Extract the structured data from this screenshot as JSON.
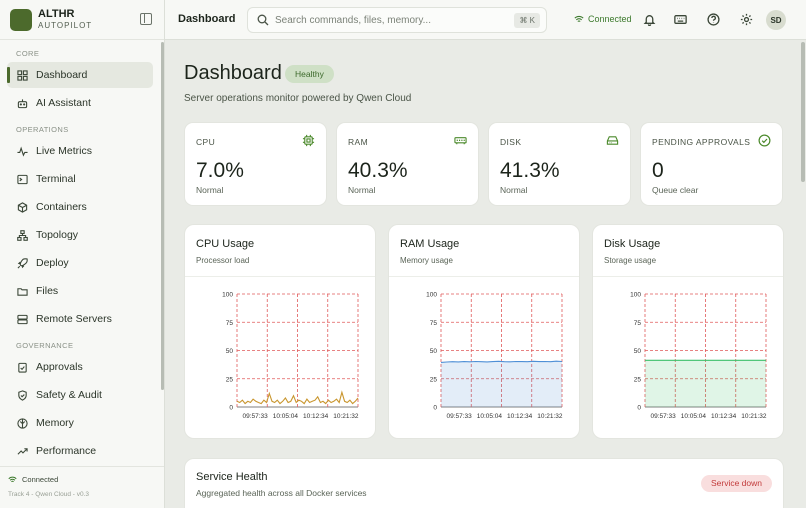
{
  "brand": {
    "title": "ALTHR",
    "subtitle": "AUTOPILOT"
  },
  "sidebar": {
    "sections": [
      {
        "label": "CORE",
        "items": [
          {
            "label": "Dashboard",
            "icon": "grid-icon",
            "active": true
          },
          {
            "label": "AI Assistant",
            "icon": "bot-icon"
          }
        ]
      },
      {
        "label": "OPERATIONS",
        "items": [
          {
            "label": "Live Metrics",
            "icon": "activity-icon"
          },
          {
            "label": "Terminal",
            "icon": "terminal-icon"
          },
          {
            "label": "Containers",
            "icon": "box-icon"
          },
          {
            "label": "Topology",
            "icon": "network-icon"
          },
          {
            "label": "Deploy",
            "icon": "rocket-icon"
          },
          {
            "label": "Files",
            "icon": "folder-icon"
          },
          {
            "label": "Remote Servers",
            "icon": "server-icon"
          }
        ]
      },
      {
        "label": "GOVERNANCE",
        "items": [
          {
            "label": "Approvals",
            "icon": "clipboard-check-icon"
          },
          {
            "label": "Safety & Audit",
            "icon": "shield-icon"
          },
          {
            "label": "Memory",
            "icon": "brain-icon"
          },
          {
            "label": "Performance",
            "icon": "trend-icon"
          }
        ]
      }
    ],
    "footer": {
      "status": "Connected",
      "version": "Track 4 - Qwen Cloud - v0.3"
    }
  },
  "topbar": {
    "title": "Dashboard",
    "search_placeholder": "Search commands, files, memory...",
    "search_shortcut": "⌘ K",
    "connection": "Connected",
    "avatar": "SD"
  },
  "colors": {
    "accent": "#4c6a2c",
    "cpu_line": "#c9962e",
    "ram_line": "#4f8fd6",
    "disk_line": "#3dbf6a",
    "grid": "#e05a5a",
    "danger": "#c23b3b"
  },
  "main": {
    "title": "Dashboard",
    "status_badge": "Healthy",
    "subtitle": "Server operations monitor powered by Qwen Cloud",
    "stats": [
      {
        "label": "CPU",
        "value": "7.0%",
        "note": "Normal",
        "icon": "cpu-icon"
      },
      {
        "label": "RAM",
        "value": "40.3%",
        "note": "Normal",
        "icon": "memory-icon"
      },
      {
        "label": "DISK",
        "value": "41.3%",
        "note": "Normal",
        "icon": "hard-drive-icon"
      },
      {
        "label": "PENDING APPROVALS",
        "value": "0",
        "note": "Queue clear",
        "icon": "check-circle-icon"
      }
    ],
    "service_health": {
      "title": "Service Health",
      "subtitle": "Aggregated health across all Docker services",
      "badge": "Service down"
    }
  },
  "chart_data": [
    {
      "type": "line",
      "title": "CPU Usage",
      "subtitle": "Processor load",
      "x_ticks": [
        "09:57:33",
        "10:05:04",
        "10:12:34",
        "10:21:32"
      ],
      "y_ticks": [
        0,
        25,
        50,
        75,
        100
      ],
      "ylim": [
        0,
        100
      ],
      "grid": true,
      "fill": false,
      "series": [
        {
          "values": [
            5,
            4,
            6,
            3,
            5,
            4,
            7,
            5,
            4,
            3,
            6,
            4,
            12,
            5,
            4,
            6,
            3,
            5,
            8,
            4,
            5,
            10,
            4,
            6,
            5,
            3,
            7,
            4,
            5,
            6,
            9,
            4,
            5,
            3,
            6,
            4,
            5,
            7,
            4,
            13,
            5,
            4,
            6,
            3,
            5,
            8
          ]
        }
      ]
    },
    {
      "type": "area",
      "title": "RAM Usage",
      "subtitle": "Memory usage",
      "x_ticks": [
        "09:57:33",
        "10:05:04",
        "10:12:34",
        "10:21:32"
      ],
      "y_ticks": [
        0,
        25,
        50,
        75,
        100
      ],
      "ylim": [
        0,
        100
      ],
      "grid": true,
      "fill": true,
      "series": [
        {
          "values": [
            39.5,
            39.8,
            40.1,
            39.9,
            40.2,
            40.0,
            40.3,
            40.1,
            39.9,
            40.2,
            40.4,
            40.1,
            40.0,
            40.3,
            40.2,
            40.1,
            40.4,
            40.2,
            40.3,
            40.1,
            40.5,
            40.3
          ]
        }
      ]
    },
    {
      "type": "area",
      "title": "Disk Usage",
      "subtitle": "Storage usage",
      "x_ticks": [
        "09:57:33",
        "10:05:04",
        "10:12:34",
        "10:21:32"
      ],
      "y_ticks": [
        0,
        25,
        50,
        75,
        100
      ],
      "ylim": [
        0,
        100
      ],
      "grid": true,
      "fill": true,
      "series": [
        {
          "values": [
            41.3,
            41.3,
            41.3,
            41.3,
            41.3,
            41.3,
            41.3,
            41.3,
            41.3,
            41.3
          ]
        }
      ]
    }
  ]
}
